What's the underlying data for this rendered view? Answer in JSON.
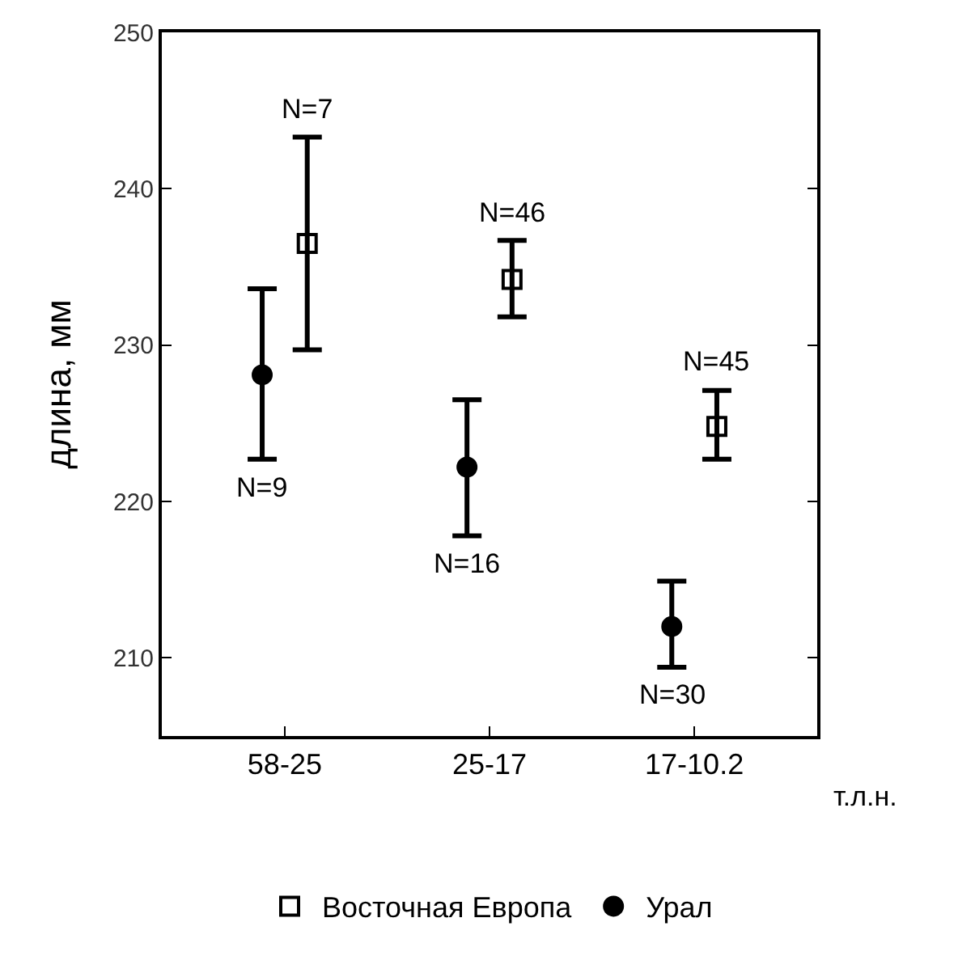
{
  "chart_data": {
    "type": "scatter",
    "ylabel": "длина, мм",
    "xlabel": "т.л.н.",
    "categories": [
      "58-25",
      "25-17",
      "17-10.2"
    ],
    "series": [
      {
        "name": "Урал",
        "color": "#000000",
        "marker": "circle",
        "values": [
          228.1,
          222.2,
          212.0
        ],
        "errors": [
          [
            222.7,
            233.6
          ],
          [
            217.8,
            226.5
          ],
          [
            209.4,
            214.9
          ]
        ]
      },
      {
        "name": "Восточная Европа",
        "color": "#000000",
        "marker": "square",
        "values": [
          236.5,
          234.2,
          224.8
        ],
        "errors": [
          [
            229.7,
            243.3
          ],
          [
            231.8,
            236.7
          ],
          [
            222.7,
            227.1
          ]
        ]
      }
    ],
    "annotations": [
      {
        "text": "N=9",
        "x": "58-25",
        "y": 222.7
      },
      {
        "text": "N=7",
        "x": "58-25",
        "y": 243.3
      },
      {
        "text": "N=16",
        "x": "25-17",
        "y": 217.8
      },
      {
        "text": "N=46",
        "x": "25-17",
        "y": 236.7
      },
      {
        "text": "N=30",
        "x": "17-10.2",
        "y": 209.4
      },
      {
        "text": "N=45",
        "x": "17-10.2",
        "y": 227.1
      }
    ],
    "ylim": [
      205,
      250
    ],
    "yticks": [
      210,
      220,
      230,
      240,
      250
    ],
    "grid": false,
    "legend": "bottom"
  }
}
